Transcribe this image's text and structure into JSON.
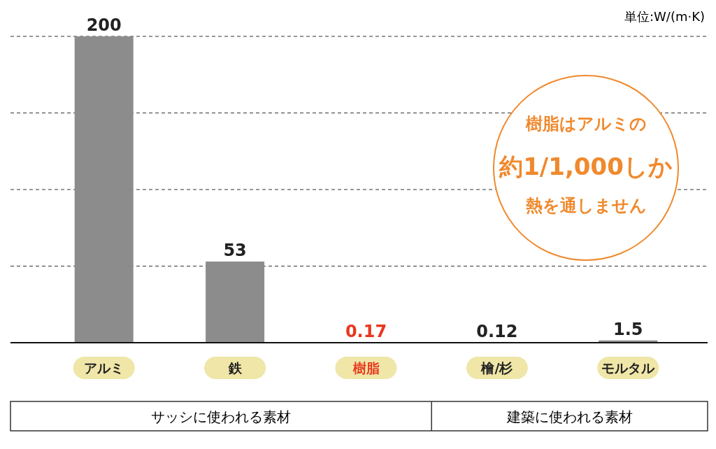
{
  "chart_data": {
    "type": "bar",
    "ylabel": "単位:W/(m·K)",
    "categories": [
      "アルミ",
      "鉄",
      "樹脂",
      "檜/杉",
      "モルタル"
    ],
    "values": [
      200,
      53,
      0.17,
      0.12,
      1.5
    ],
    "colors": [
      "#8c8c8c",
      "#8c8c8c",
      "#f0892d",
      "#8c8c8c",
      "#8c8c8c"
    ],
    "data_labels": true,
    "ylim": [
      0,
      200
    ],
    "yticks": [
      {
        "value": 50,
        "label": null
      },
      {
        "value": 100,
        "label": null
      },
      {
        "value": 150,
        "label": null
      },
      {
        "value": 200,
        "label": null
      }
    ],
    "grid": "y",
    "tick_labels": "x",
    "annotations": [
      "サッシに使われる素材",
      "建築に使われる素材",
      "樹脂はアルミの",
      "約1/1,000しか",
      "熱を通しません"
    ]
  }
}
